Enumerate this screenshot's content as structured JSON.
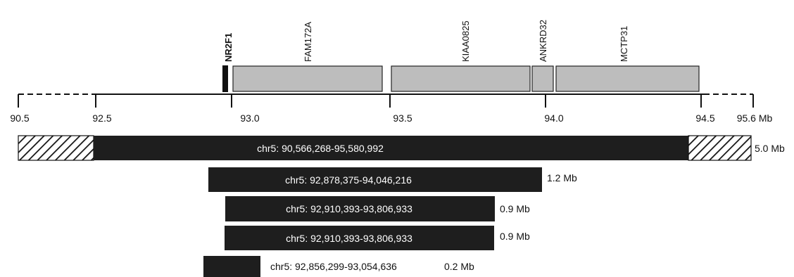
{
  "ruler": {
    "unit_suffix": " Mb",
    "ticks": [
      {
        "label": "90.5"
      },
      {
        "label": "92.5"
      },
      {
        "label": "93.0"
      },
      {
        "label": "93.5"
      },
      {
        "label": "94.0"
      },
      {
        "label": "94.5"
      },
      {
        "label": "95.6 Mb"
      }
    ]
  },
  "genes": [
    {
      "name": "NR2F1",
      "bold": true,
      "style": "black"
    },
    {
      "name": "FAM172A",
      "bold": false,
      "style": "gray"
    },
    {
      "name": "KIAA0825",
      "bold": false,
      "style": "gray"
    },
    {
      "name": "ANKRD32",
      "bold": false,
      "style": "gray"
    },
    {
      "name": "MCTP31",
      "bold": false,
      "style": "gray"
    }
  ],
  "deletions": [
    {
      "label": "chr5: 90,566,268-95,580,992",
      "size": "5.0 Mb",
      "hatched_ends": true
    },
    {
      "label": "chr5: 92,878,375-94,046,216",
      "size": "1.2 Mb",
      "hatched_ends": false
    },
    {
      "label": "chr5: 92,910,393-93,806,933",
      "size": "0.9 Mb",
      "hatched_ends": false
    },
    {
      "label": "chr5: 92,910,393-93,806,933",
      "size": "0.9 Mb",
      "hatched_ends": false
    },
    {
      "label": "chr5: 92,856,299-93,054,636",
      "size": "0.2 Mb",
      "hatched_ends": false
    }
  ],
  "colors": {
    "bar": "#1e1e1e",
    "gene_fill": "#bdbdbd",
    "gene_stroke": "#222222",
    "line": "#111111"
  }
}
